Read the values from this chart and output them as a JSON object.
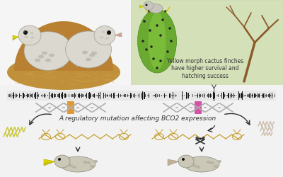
{
  "bg_color": "#f2f2f2",
  "top_left_bg": "#f5f5f5",
  "top_right_bg": "#d4e0b8",
  "bottom_bg": "#f2f2f2",
  "text_caption": "Yellow morph cactus finches\nhave higher survival and\nhatching success",
  "text_mutation": "A regulatory mutation affecting BCO2 expression",
  "caption_fontsize": 5.5,
  "mutation_fontsize": 6.5,
  "yellow_color": "#c8c400",
  "pink_color": "#d040a0",
  "orange_marker": "#e09020",
  "dna_gray": "#aaaaaa",
  "bird_body": "#d8d5cc",
  "nest_color": "#c8a060",
  "cactus_green": "#70b830",
  "branch_color": "#8B5A2B",
  "genome_dark": "#333333",
  "genome_light": "#aaaaaa",
  "carotenoid_color": "#c8a030",
  "carotenoid_left": "#c8c430"
}
